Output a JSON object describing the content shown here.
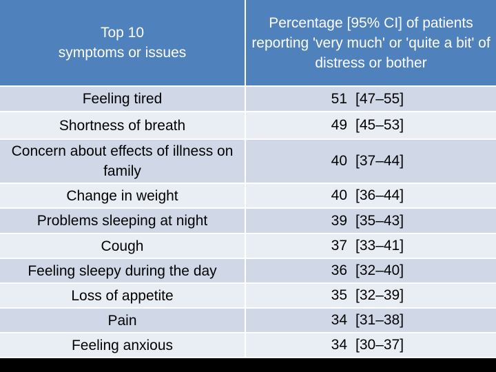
{
  "table": {
    "header": [
      "Top 10\nsymptoms or issues",
      "Percentage [95% CI] of patients reporting 'very much' or 'quite a bit' of distress or bother"
    ],
    "rows": [
      {
        "symptom": "Feeling tired",
        "percent": 51,
        "ci": "[47–55]"
      },
      {
        "symptom": "Shortness of breath",
        "percent": 49,
        "ci": "[45–53]"
      },
      {
        "symptom": "Concern about effects of illness on family",
        "percent": 40,
        "ci": "[37–44]"
      },
      {
        "symptom": "Change in weight",
        "percent": 40,
        "ci": "[36–44]"
      },
      {
        "symptom": "Problems sleeping at night",
        "percent": 39,
        "ci": "[35–43]"
      },
      {
        "symptom": "Cough",
        "percent": 37,
        "ci": "[33–41]"
      },
      {
        "symptom": "Feeling sleepy during the day",
        "percent": 36,
        "ci": "[32–40]"
      },
      {
        "symptom": "Loss of appetite",
        "percent": 35,
        "ci": "[32–39]"
      },
      {
        "symptom": "Pain",
        "percent": 34,
        "ci": "[31–38]"
      },
      {
        "symptom": "Feeling anxious",
        "percent": 34,
        "ci": "[30–37]"
      }
    ]
  }
}
